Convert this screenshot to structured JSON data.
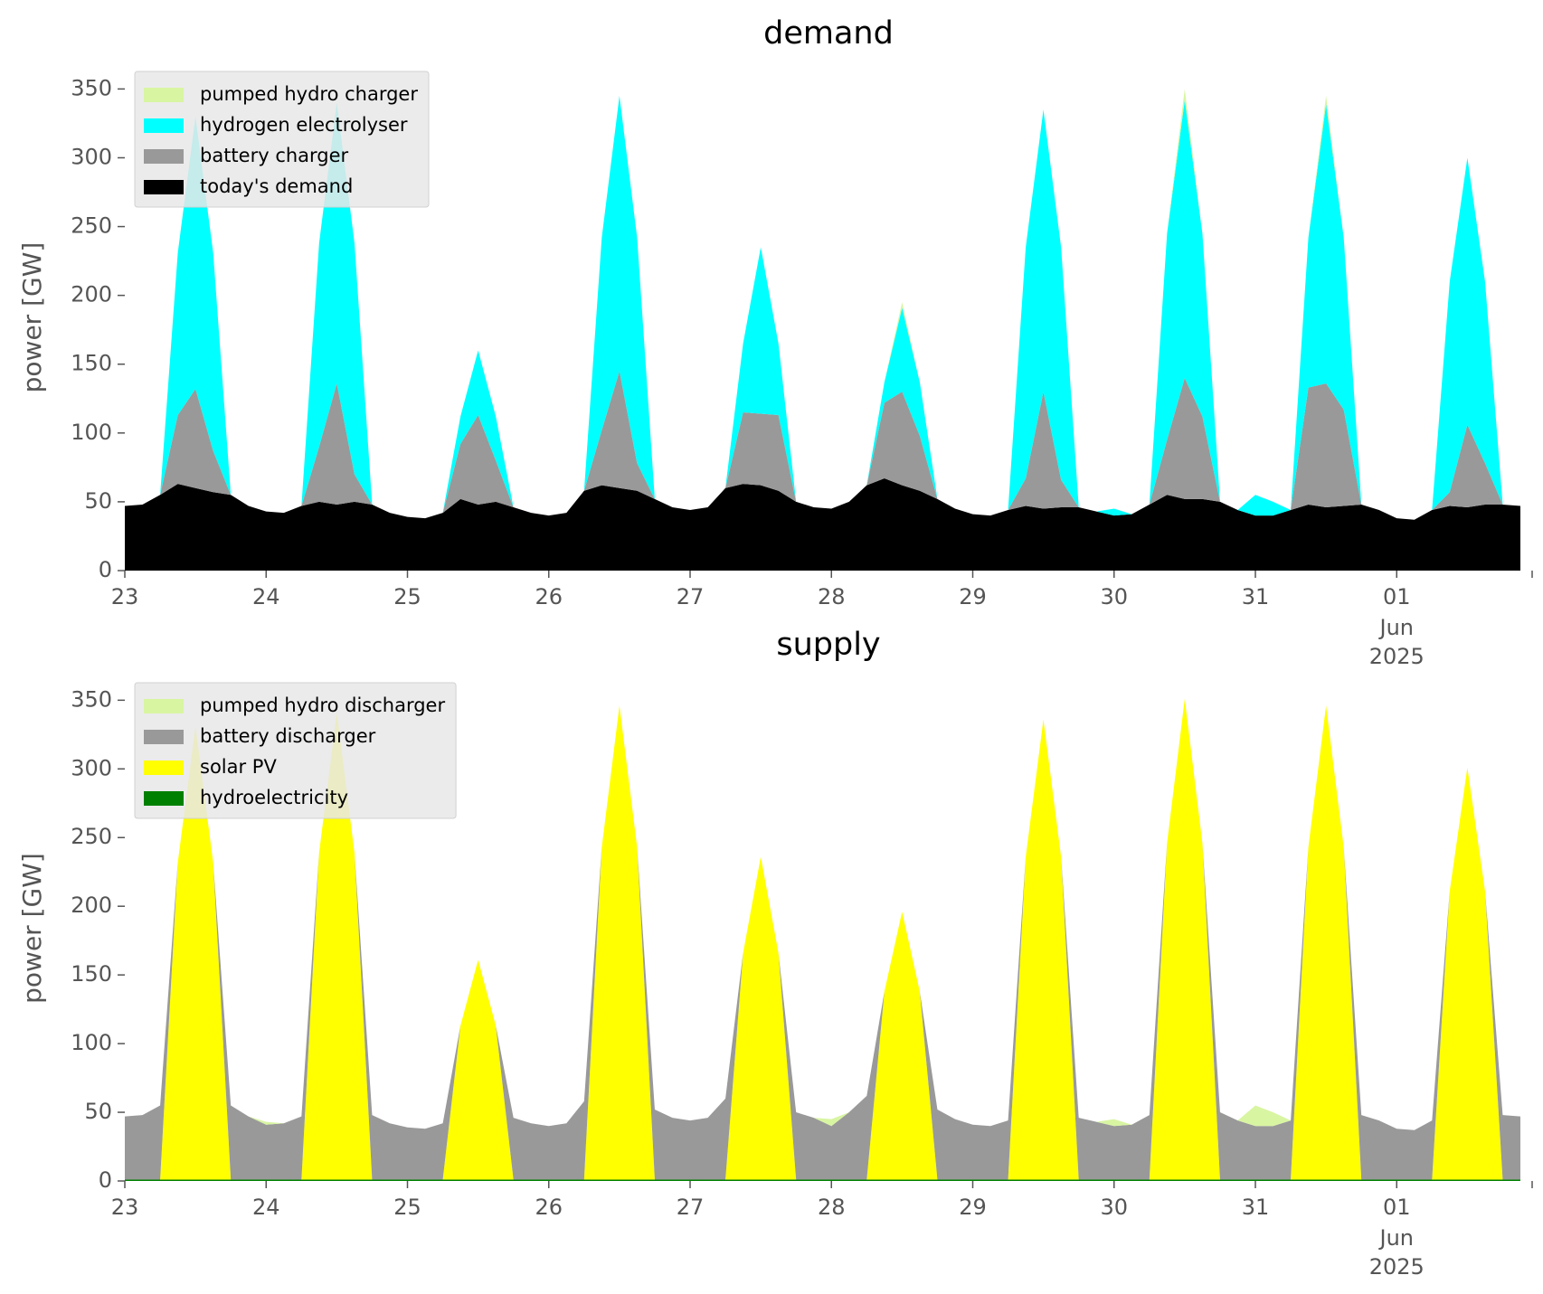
{
  "chart_data": [
    {
      "type": "stacked_area",
      "title": "demand",
      "ylabel": "power [GW]",
      "x": [
        "2025-05-23T00:00",
        "2025-05-23T03:00",
        "2025-05-23T06:00",
        "2025-05-23T09:00",
        "2025-05-23T12:00",
        "2025-05-23T15:00",
        "2025-05-23T18:00",
        "2025-05-23T21:00",
        "2025-05-24T00:00",
        "2025-05-24T03:00",
        "2025-05-24T06:00",
        "2025-05-24T09:00",
        "2025-05-24T12:00",
        "2025-05-24T15:00",
        "2025-05-24T18:00",
        "2025-05-24T21:00",
        "2025-05-25T00:00",
        "2025-05-25T03:00",
        "2025-05-25T06:00",
        "2025-05-25T09:00",
        "2025-05-25T12:00",
        "2025-05-25T15:00",
        "2025-05-25T18:00",
        "2025-05-25T21:00",
        "2025-05-26T00:00",
        "2025-05-26T03:00",
        "2025-05-26T06:00",
        "2025-05-26T09:00",
        "2025-05-26T12:00",
        "2025-05-26T15:00",
        "2025-05-26T18:00",
        "2025-05-26T21:00",
        "2025-05-27T00:00",
        "2025-05-27T03:00",
        "2025-05-27T06:00",
        "2025-05-27T09:00",
        "2025-05-27T12:00",
        "2025-05-27T15:00",
        "2025-05-27T18:00",
        "2025-05-27T21:00",
        "2025-05-28T00:00",
        "2025-05-28T03:00",
        "2025-05-28T06:00",
        "2025-05-28T09:00",
        "2025-05-28T12:00",
        "2025-05-28T15:00",
        "2025-05-28T18:00",
        "2025-05-28T21:00",
        "2025-05-29T00:00",
        "2025-05-29T03:00",
        "2025-05-29T06:00",
        "2025-05-29T09:00",
        "2025-05-29T12:00",
        "2025-05-29T15:00",
        "2025-05-29T18:00",
        "2025-05-29T21:00",
        "2025-05-30T00:00",
        "2025-05-30T03:00",
        "2025-05-30T06:00",
        "2025-05-30T09:00",
        "2025-05-30T12:00",
        "2025-05-30T15:00",
        "2025-05-30T18:00",
        "2025-05-30T21:00",
        "2025-05-31T00:00",
        "2025-05-31T03:00",
        "2025-05-31T06:00",
        "2025-05-31T09:00",
        "2025-05-31T12:00",
        "2025-05-31T15:00",
        "2025-05-31T18:00",
        "2025-05-31T21:00",
        "2025-06-01T00:00",
        "2025-06-01T03:00",
        "2025-06-01T06:00",
        "2025-06-01T09:00",
        "2025-06-01T12:00",
        "2025-06-01T15:00",
        "2025-06-01T18:00",
        "2025-06-01T21:00"
      ],
      "series": [
        {
          "name": "today's demand",
          "color": "#000000",
          "values": [
            47,
            48,
            55,
            63,
            60,
            57,
            55,
            47,
            43,
            42,
            47,
            50,
            48,
            50,
            48,
            42,
            39,
            38,
            42,
            52,
            48,
            50,
            46,
            42,
            40,
            42,
            58,
            62,
            60,
            58,
            52,
            46,
            44,
            46,
            60,
            63,
            62,
            58,
            50,
            46,
            45,
            50,
            62,
            67,
            62,
            58,
            52,
            45,
            41,
            40,
            44,
            47,
            45,
            46,
            46,
            43,
            40,
            41,
            48,
            55,
            52,
            52,
            50,
            44,
            40,
            40,
            44,
            48,
            46,
            47,
            48,
            44,
            38,
            37,
            44,
            47,
            46,
            48,
            48,
            47
          ]
        },
        {
          "name": "battery charger",
          "color": "#999999",
          "values": [
            0,
            0,
            0,
            50,
            72,
            30,
            0,
            0,
            0,
            0,
            0,
            40,
            88,
            20,
            0,
            0,
            0,
            0,
            0,
            40,
            65,
            30,
            0,
            0,
            0,
            0,
            0,
            40,
            85,
            20,
            0,
            0,
            0,
            0,
            0,
            52,
            52,
            55,
            0,
            0,
            0,
            0,
            0,
            55,
            68,
            40,
            0,
            0,
            0,
            0,
            0,
            20,
            85,
            20,
            0,
            0,
            0,
            0,
            0,
            40,
            88,
            60,
            0,
            0,
            0,
            0,
            0,
            85,
            90,
            70,
            0,
            0,
            0,
            0,
            0,
            10,
            60,
            30,
            0,
            0
          ]
        },
        {
          "name": "hydrogen electrolyser",
          "color": "#00ffff",
          "values": [
            0,
            0,
            0,
            118,
            198,
            144,
            0,
            0,
            0,
            0,
            0,
            148,
            204,
            168,
            0,
            0,
            0,
            0,
            0,
            20,
            47,
            32,
            0,
            0,
            0,
            0,
            0,
            140,
            200,
            164,
            0,
            0,
            0,
            0,
            0,
            50,
            121,
            52,
            0,
            0,
            0,
            0,
            0,
            15,
            61,
            39,
            0,
            0,
            0,
            0,
            0,
            168,
            205,
            169,
            0,
            0,
            5,
            0,
            0,
            150,
            202,
            133,
            0,
            0,
            15,
            10,
            0,
            109,
            203,
            125,
            0,
            0,
            0,
            0,
            0,
            153,
            194,
            132,
            0,
            0
          ]
        },
        {
          "name": "pumped hydro charger",
          "color": "#d8f5a2",
          "values": [
            0,
            0,
            0,
            0,
            0,
            0,
            0,
            0,
            0,
            0,
            0,
            0,
            0,
            0,
            0,
            0,
            0,
            0,
            0,
            0,
            0,
            0,
            0,
            0,
            0,
            0,
            0,
            0,
            0,
            0,
            0,
            0,
            0,
            0,
            0,
            0,
            0,
            0,
            0,
            0,
            0,
            0,
            0,
            0,
            4,
            0,
            0,
            0,
            0,
            0,
            0,
            0,
            0,
            0,
            0,
            0,
            0,
            0,
            0,
            0,
            8,
            0,
            0,
            0,
            0,
            0,
            0,
            0,
            6,
            0,
            0,
            0,
            0,
            0,
            0,
            0,
            0,
            0,
            0,
            0
          ]
        }
      ],
      "xlim": [
        "2025-05-23T00:00",
        "2025-06-01T23:00"
      ],
      "xticks": [
        {
          "value": "2025-05-23T00:00",
          "label": "23"
        },
        {
          "value": "2025-05-24T00:00",
          "label": "24"
        },
        {
          "value": "2025-05-25T00:00",
          "label": "25"
        },
        {
          "value": "2025-05-26T00:00",
          "label": "26"
        },
        {
          "value": "2025-05-27T00:00",
          "label": "27"
        },
        {
          "value": "2025-05-28T00:00",
          "label": "28"
        },
        {
          "value": "2025-05-29T00:00",
          "label": "29"
        },
        {
          "value": "2025-05-30T00:00",
          "label": "30"
        },
        {
          "value": "2025-05-31T00:00",
          "label": "31"
        },
        {
          "value": "2025-06-01T00:00",
          "label": "01"
        }
      ],
      "x_offset_label": [
        "Jun",
        "2025"
      ],
      "ylim": [
        0,
        368
      ],
      "yticks": [
        0,
        50,
        100,
        150,
        200,
        250,
        300,
        350
      ],
      "legend": "upper left"
    },
    {
      "type": "stacked_area",
      "title": "supply",
      "ylabel": "power [GW]",
      "x": [
        "2025-05-23T00:00",
        "2025-05-23T03:00",
        "2025-05-23T06:00",
        "2025-05-23T09:00",
        "2025-05-23T12:00",
        "2025-05-23T15:00",
        "2025-05-23T18:00",
        "2025-05-23T21:00",
        "2025-05-24T00:00",
        "2025-05-24T03:00",
        "2025-05-24T06:00",
        "2025-05-24T09:00",
        "2025-05-24T12:00",
        "2025-05-24T15:00",
        "2025-05-24T18:00",
        "2025-05-24T21:00",
        "2025-05-25T00:00",
        "2025-05-25T03:00",
        "2025-05-25T06:00",
        "2025-05-25T09:00",
        "2025-05-25T12:00",
        "2025-05-25T15:00",
        "2025-05-25T18:00",
        "2025-05-25T21:00",
        "2025-05-26T00:00",
        "2025-05-26T03:00",
        "2025-05-26T06:00",
        "2025-05-26T09:00",
        "2025-05-26T12:00",
        "2025-05-26T15:00",
        "2025-05-26T18:00",
        "2025-05-26T21:00",
        "2025-05-27T00:00",
        "2025-05-27T03:00",
        "2025-05-27T06:00",
        "2025-05-27T09:00",
        "2025-05-27T12:00",
        "2025-05-27T15:00",
        "2025-05-27T18:00",
        "2025-05-27T21:00",
        "2025-05-28T00:00",
        "2025-05-28T03:00",
        "2025-05-28T06:00",
        "2025-05-28T09:00",
        "2025-05-28T12:00",
        "2025-05-28T15:00",
        "2025-05-28T18:00",
        "2025-05-28T21:00",
        "2025-05-29T00:00",
        "2025-05-29T03:00",
        "2025-05-29T06:00",
        "2025-05-29T09:00",
        "2025-05-29T12:00",
        "2025-05-29T15:00",
        "2025-05-29T18:00",
        "2025-05-29T21:00",
        "2025-05-30T00:00",
        "2025-05-30T03:00",
        "2025-05-30T06:00",
        "2025-05-30T09:00",
        "2025-05-30T12:00",
        "2025-05-30T15:00",
        "2025-05-30T18:00",
        "2025-05-30T21:00",
        "2025-05-31T00:00",
        "2025-05-31T03:00",
        "2025-05-31T06:00",
        "2025-05-31T09:00",
        "2025-05-31T12:00",
        "2025-05-31T15:00",
        "2025-05-31T18:00",
        "2025-05-31T21:00",
        "2025-06-01T00:00",
        "2025-06-01T03:00",
        "2025-06-01T06:00",
        "2025-06-01T09:00",
        "2025-06-01T12:00",
        "2025-06-01T15:00",
        "2025-06-01T18:00",
        "2025-06-01T21:00"
      ],
      "series": [
        {
          "name": "hydroelectricity",
          "color": "#008000",
          "values": [
            1,
            1,
            1,
            1,
            1,
            1,
            1,
            1,
            1,
            1,
            1,
            1,
            1,
            1,
            1,
            1,
            1,
            1,
            1,
            1,
            1,
            1,
            1,
            1,
            1,
            1,
            1,
            1,
            1,
            1,
            1,
            1,
            1,
            1,
            1,
            1,
            1,
            1,
            1,
            1,
            1,
            1,
            1,
            1,
            1,
            1,
            1,
            1,
            1,
            1,
            1,
            1,
            1,
            1,
            1,
            1,
            1,
            1,
            1,
            1,
            1,
            1,
            1,
            1,
            1,
            1,
            1,
            1,
            1,
            1,
            1,
            1,
            1,
            1,
            1,
            1,
            1,
            1,
            1,
            1
          ]
        },
        {
          "name": "solar PV",
          "color": "#ffff00",
          "values": [
            0,
            0,
            0,
            231,
            330,
            231,
            0,
            0,
            0,
            0,
            0,
            238,
            340,
            238,
            0,
            0,
            0,
            0,
            0,
            112,
            160,
            112,
            0,
            0,
            0,
            0,
            0,
            242,
            345,
            242,
            0,
            0,
            0,
            0,
            0,
            165,
            235,
            165,
            0,
            0,
            0,
            0,
            0,
            137,
            195,
            137,
            0,
            0,
            0,
            0,
            0,
            235,
            335,
            235,
            0,
            0,
            0,
            0,
            0,
            245,
            350,
            245,
            0,
            0,
            0,
            0,
            0,
            242,
            345,
            242,
            0,
            0,
            0,
            0,
            0,
            210,
            300,
            210,
            0,
            0
          ]
        },
        {
          "name": "battery discharger",
          "color": "#999999",
          "values": [
            46,
            47,
            54,
            0,
            0,
            0,
            54,
            46,
            40,
            41,
            46,
            0,
            0,
            0,
            47,
            41,
            38,
            37,
            41,
            0,
            0,
            0,
            45,
            41,
            39,
            41,
            57,
            0,
            0,
            0,
            51,
            45,
            43,
            45,
            59,
            0,
            0,
            0,
            49,
            45,
            39,
            49,
            61,
            0,
            0,
            0,
            51,
            44,
            40,
            39,
            43,
            0,
            0,
            0,
            45,
            42,
            39,
            40,
            47,
            0,
            0,
            0,
            49,
            43,
            39,
            39,
            43,
            0,
            0,
            0,
            47,
            43,
            37,
            36,
            43,
            0,
            0,
            0,
            47,
            46
          ]
        },
        {
          "name": "pumped hydro discharger",
          "color": "#d8f5a2",
          "values": [
            0,
            0,
            0,
            0,
            0,
            0,
            0,
            0,
            2,
            0,
            0,
            0,
            0,
            0,
            0,
            0,
            0,
            0,
            0,
            0,
            0,
            0,
            0,
            0,
            0,
            0,
            0,
            0,
            0,
            0,
            0,
            0,
            0,
            0,
            0,
            0,
            0,
            0,
            0,
            0,
            5,
            0,
            0,
            0,
            0,
            0,
            0,
            0,
            0,
            0,
            0,
            0,
            0,
            0,
            0,
            0,
            5,
            0,
            0,
            0,
            0,
            0,
            0,
            0,
            15,
            10,
            0,
            0,
            0,
            0,
            0,
            0,
            0,
            0,
            0,
            0,
            0,
            0,
            0,
            0
          ]
        }
      ],
      "xlim": [
        "2025-05-23T00:00",
        "2025-06-01T23:00"
      ],
      "xticks": [
        {
          "value": "2025-05-23T00:00",
          "label": "23"
        },
        {
          "value": "2025-05-24T00:00",
          "label": "24"
        },
        {
          "value": "2025-05-25T00:00",
          "label": "25"
        },
        {
          "value": "2025-05-26T00:00",
          "label": "26"
        },
        {
          "value": "2025-05-27T00:00",
          "label": "27"
        },
        {
          "value": "2025-05-28T00:00",
          "label": "28"
        },
        {
          "value": "2025-05-29T00:00",
          "label": "29"
        },
        {
          "value": "2025-05-30T00:00",
          "label": "30"
        },
        {
          "value": "2025-05-31T00:00",
          "label": "31"
        },
        {
          "value": "2025-06-01T00:00",
          "label": "01"
        }
      ],
      "x_offset_label": [
        "Jun",
        "2025"
      ],
      "ylim": [
        0,
        368
      ],
      "yticks": [
        0,
        50,
        100,
        150,
        200,
        250,
        300,
        350
      ],
      "legend": "upper left"
    }
  ]
}
